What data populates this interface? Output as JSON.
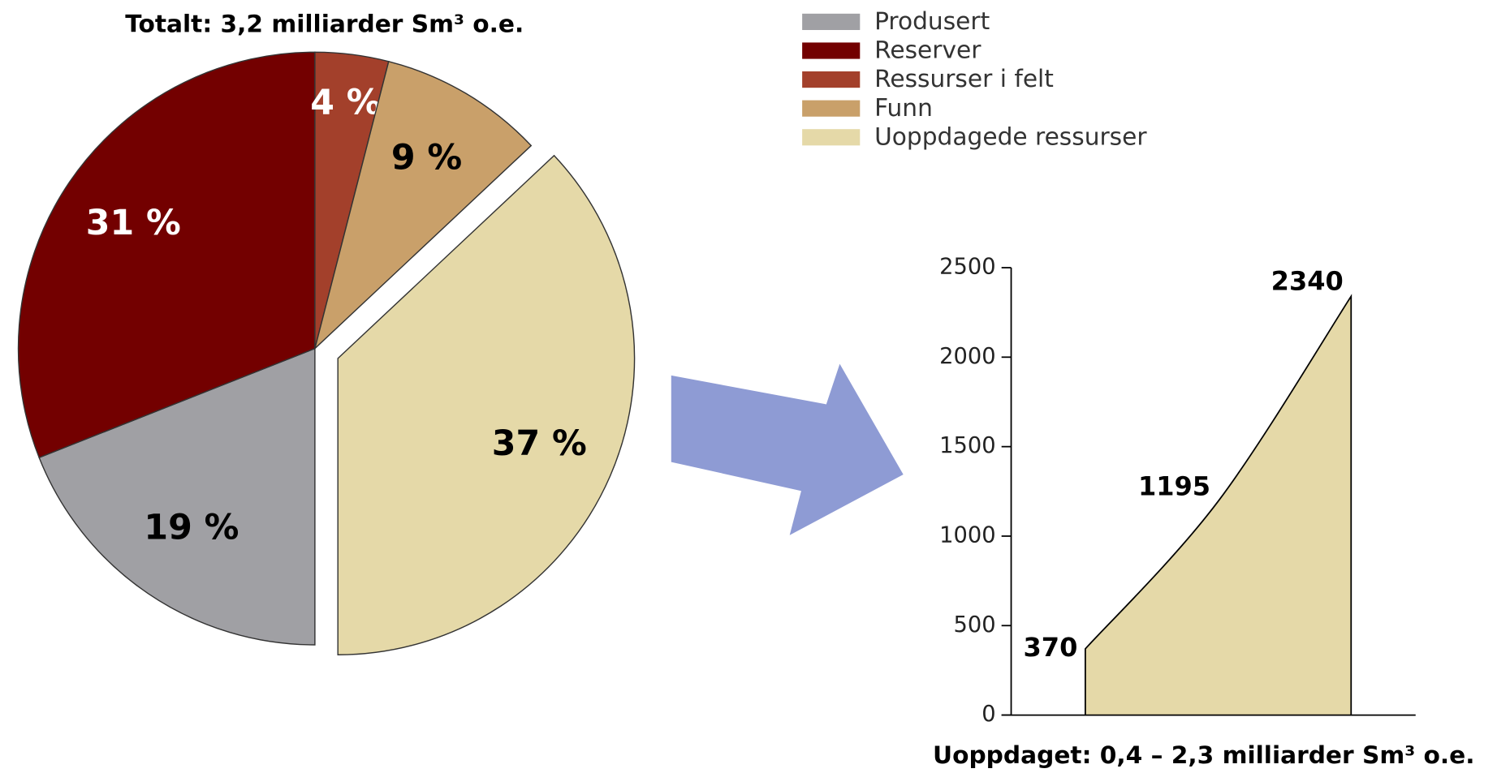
{
  "chart_data": [
    {
      "type": "pie",
      "title": "Totalt: 3,2 milliarder Sm³ o.e.",
      "categories": [
        "Produsert",
        "Reserver",
        "Ressurser i felt",
        "Funn",
        "Uoppdagede ressurser"
      ],
      "values": [
        19,
        31,
        4,
        9,
        37
      ],
      "value_labels": [
        "19 %",
        "31 %",
        "4 %",
        "9 %",
        "37 %"
      ],
      "colors": [
        "#a0a0a4",
        "#730000",
        "#a3402b",
        "#c9a06a",
        "#e5d9a8"
      ],
      "label_colors": [
        "#000000",
        "#ffffff",
        "#ffffff",
        "#000000",
        "#000000"
      ],
      "explode": [
        false,
        false,
        false,
        false,
        true
      ],
      "legend": "top-right"
    },
    {
      "type": "area",
      "title": "Uoppdaget: 0,4 – 2,3 milliarder Sm³ o.e.",
      "categories": [
        null,
        null,
        null
      ],
      "values": [
        370,
        1195,
        2340
      ],
      "color": "#e5d9a8",
      "ylim": [
        0,
        2500
      ],
      "yticks": [
        0,
        500,
        1000,
        1500,
        2000,
        2500
      ]
    }
  ]
}
